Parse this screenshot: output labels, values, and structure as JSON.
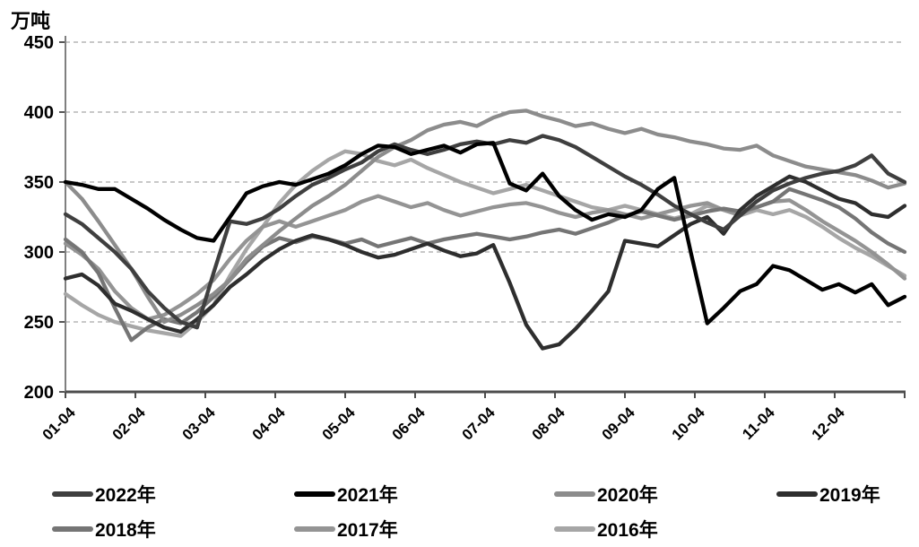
{
  "unit_label": "万吨",
  "chart_data": {
    "type": "line",
    "title": "",
    "ylabel": "万吨",
    "ylim": [
      200,
      450
    ],
    "yticks": [
      450,
      400,
      350,
      300,
      250,
      200
    ],
    "x_tick_labels": [
      "01-04",
      "02-04",
      "03-04",
      "04-04",
      "05-04",
      "06-04",
      "07-04",
      "08-04",
      "09-04",
      "10-04",
      "11-04",
      "12-04"
    ],
    "grid": "horizontal-dashed",
    "legend_position": "bottom",
    "points_per_series": 52,
    "x_meaning": "weekly dates from 01-04 to 12-27",
    "series": [
      {
        "name": "2022年",
        "color": "#3f3f3f",
        "values": [
          327,
          320,
          310,
          300,
          288,
          272,
          260,
          250,
          246,
          285,
          322,
          320,
          324,
          331,
          340,
          348,
          353,
          359,
          364,
          372,
          377,
          373,
          370,
          373,
          377,
          379,
          377,
          380,
          378,
          383,
          380,
          375,
          368,
          361,
          354,
          348,
          341,
          333,
          327,
          321,
          316,
          326,
          336,
          344,
          349,
          353,
          356,
          358,
          362,
          369,
          356,
          350
        ]
      },
      {
        "name": "2021年",
        "color": "#000000",
        "values": [
          350,
          348,
          345,
          345,
          338,
          331,
          323,
          316,
          310,
          308,
          325,
          342,
          347,
          350,
          348,
          352,
          356,
          362,
          370,
          376,
          375,
          370,
          373,
          376,
          371,
          377,
          378,
          349,
          344,
          356,
          340,
          330,
          323,
          327,
          325,
          330,
          345,
          353,
          300,
          249,
          260,
          272,
          277,
          290,
          287,
          280,
          273,
          277,
          271,
          277,
          262,
          268
        ]
      },
      {
        "name": "2020年",
        "color": "#8c8c8c",
        "values": [
          350,
          338,
          322,
          305,
          288,
          268,
          250,
          255,
          262,
          270,
          280,
          295,
          305,
          315,
          324,
          333,
          340,
          348,
          358,
          368,
          375,
          380,
          387,
          391,
          393,
          390,
          396,
          400,
          401,
          397,
          394,
          390,
          392,
          388,
          385,
          388,
          384,
          382,
          379,
          377,
          374,
          373,
          376,
          369,
          365,
          361,
          359,
          357,
          355,
          351,
          346,
          349
        ]
      },
      {
        "name": "2019年",
        "color": "#2e2e2e",
        "values": [
          281,
          284,
          276,
          263,
          258,
          252,
          246,
          243,
          252,
          262,
          275,
          284,
          294,
          302,
          308,
          312,
          309,
          305,
          300,
          296,
          298,
          302,
          306,
          301,
          297,
          299,
          305,
          278,
          248,
          231,
          234,
          245,
          258,
          272,
          308,
          306,
          304,
          312,
          320,
          325,
          313,
          330,
          340,
          347,
          354,
          350,
          344,
          338,
          335,
          327,
          325,
          333
        ]
      },
      {
        "name": "2018年",
        "color": "#757575",
        "values": [
          309,
          300,
          285,
          260,
          237,
          246,
          252,
          249,
          257,
          268,
          280,
          293,
          304,
          310,
          307,
          311,
          309,
          306,
          309,
          304,
          307,
          310,
          306,
          309,
          311,
          313,
          311,
          309,
          311,
          314,
          316,
          313,
          317,
          321,
          326,
          329,
          326,
          323,
          326,
          329,
          331,
          329,
          332,
          336,
          345,
          341,
          337,
          332,
          324,
          314,
          306,
          300
        ]
      },
      {
        "name": "2017年",
        "color": "#949494",
        "values": [
          306,
          298,
          288,
          272,
          260,
          252,
          255,
          262,
          270,
          280,
          295,
          308,
          318,
          322,
          318,
          322,
          326,
          330,
          336,
          340,
          336,
          332,
          335,
          330,
          326,
          329,
          332,
          334,
          335,
          332,
          328,
          325,
          328,
          330,
          327,
          324,
          327,
          330,
          333,
          335,
          330,
          327,
          332,
          336,
          337,
          330,
          322,
          315,
          308,
          300,
          291,
          281
        ]
      },
      {
        "name": "2016年",
        "color": "#a6a6a6",
        "values": [
          270,
          262,
          255,
          250,
          247,
          244,
          242,
          240,
          250,
          262,
          283,
          302,
          318,
          335,
          348,
          358,
          366,
          372,
          370,
          365,
          362,
          366,
          360,
          355,
          350,
          346,
          342,
          345,
          348,
          344,
          340,
          336,
          332,
          330,
          333,
          330,
          327,
          324,
          327,
          333,
          330,
          326,
          330,
          327,
          330,
          325,
          318,
          310,
          303,
          297,
          290,
          283
        ]
      }
    ]
  },
  "legend": {
    "rows": [
      [
        "2022年",
        "2021年",
        "2020年",
        "2019年"
      ],
      [
        "2018年",
        "2017年",
        "2016年"
      ]
    ]
  }
}
